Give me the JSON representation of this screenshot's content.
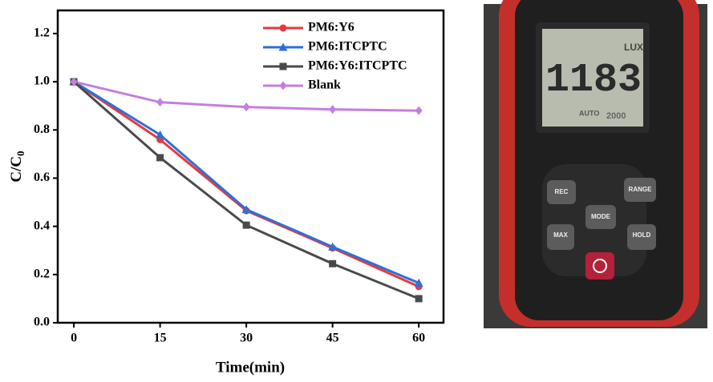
{
  "chart_data": {
    "type": "line",
    "xlabel": "Time(min)",
    "ylabel": "C/C",
    "ylabel_sub": "0",
    "x": [
      0,
      15,
      30,
      45,
      60
    ],
    "series": [
      {
        "name": "PM6:Y6",
        "color": "#e8383d",
        "marker": "circle",
        "values": [
          1.0,
          0.76,
          0.465,
          0.31,
          0.15
        ]
      },
      {
        "name": "PM6:ITCPTC",
        "color": "#2f6fd6",
        "marker": "triangle",
        "values": [
          1.0,
          0.78,
          0.47,
          0.315,
          0.165
        ]
      },
      {
        "name": "PM6:Y6:ITCPTC",
        "color": "#4a4a4a",
        "marker": "square",
        "values": [
          1.0,
          0.685,
          0.405,
          0.245,
          0.1
        ]
      },
      {
        "name": "Blank",
        "color": "#c47ee0",
        "marker": "diamond",
        "values": [
          1.0,
          0.915,
          0.895,
          0.885,
          0.88
        ]
      }
    ],
    "xlim": [
      -2.8,
      64.3
    ],
    "xticks": [
      0,
      15,
      30,
      45,
      60
    ],
    "ylim": [
      0,
      1.296
    ],
    "yticks": [
      {
        "value": 0,
        "label": "0.0"
      },
      0.2,
      0.4,
      0.6,
      0.8,
      {
        "value": 1,
        "label": "1.0"
      },
      1.2
    ],
    "legend": "upper right",
    "grid": false
  },
  "photo": {
    "unit": "LUX",
    "reading": "1183",
    "mode": "AUTO",
    "range": "2000",
    "buttons": [
      "REC",
      "RANGE",
      "MODE",
      "MAX",
      "HOLD"
    ]
  }
}
